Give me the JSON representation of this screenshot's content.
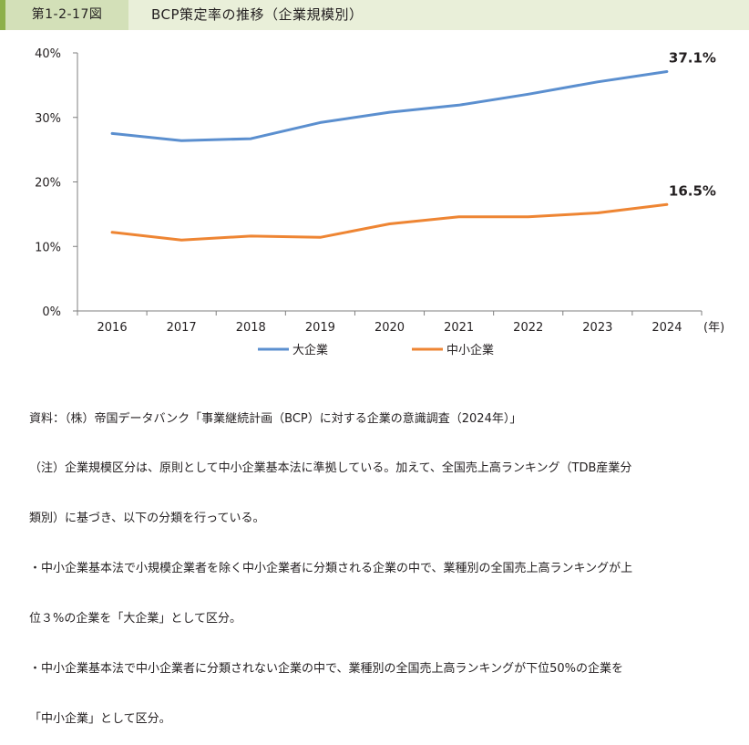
{
  "header": {
    "figure_number": "第1-2-17図",
    "title": "BCP策定率の推移（企業規模別）"
  },
  "chart_data": {
    "type": "line",
    "x": [
      "2016",
      "2017",
      "2018",
      "2019",
      "2020",
      "2021",
      "2022",
      "2023",
      "2024"
    ],
    "x_unit": "(年)",
    "y_ticks": [
      "0%",
      "10%",
      "20%",
      "30%",
      "40%"
    ],
    "ylim": [
      0,
      40
    ],
    "grid": false,
    "legend_position": "bottom",
    "series": [
      {
        "name": "大企業",
        "color": "#5b8fcf",
        "values": [
          27.5,
          26.4,
          26.7,
          29.2,
          30.8,
          31.9,
          33.6,
          35.5,
          37.1
        ],
        "end_label": "37.1%"
      },
      {
        "name": "中小企業",
        "color": "#ee8533",
        "values": [
          12.2,
          11.0,
          11.6,
          11.4,
          13.5,
          14.6,
          14.6,
          15.2,
          16.5
        ],
        "end_label": "16.5%"
      }
    ]
  },
  "notes": [
    "資料：（株）帝国データバンク「事業継続計画（BCP）に対する企業の意識調査（2024年）」",
    "（注）企業規模区分は、原則として中小企業基本法に準拠している。加えて、全国売上高ランキング（TDB産業分",
    "類別）に基づき、以下の分類を行っている。",
    "・中小企業基本法で小規模企業者を除く中小企業者に分類される企業の中で、業種別の全国売上高ランキングが上",
    "位３%の企業を「大企業」として区分。",
    "・中小企業基本法で中小企業者に分類されない企業の中で、業種別の全国売上高ランキングが下位50%の企業を",
    "「中小企業」として区分。"
  ]
}
